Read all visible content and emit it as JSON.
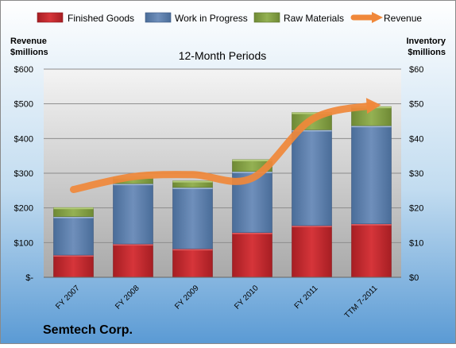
{
  "chart_data": {
    "type": "bar",
    "subtitle": "12-Month Periods",
    "company": "Semtech Corp.",
    "left_axis_label_line1": "Revenue",
    "left_axis_label_line2": "$millions",
    "right_axis_label_line1": "Inventory",
    "right_axis_label_line2": "$millions",
    "categories": [
      "FY 2007",
      "FY 2008",
      "FY 2009",
      "FY 2010",
      "FY 2011",
      "TTM 7-2011"
    ],
    "left_ticks": [
      "$-",
      "$100",
      "$200",
      "$300",
      "$400",
      "$500",
      "$600"
    ],
    "right_ticks": [
      "$0",
      "$10",
      "$20",
      "$30",
      "$40",
      "$50",
      "$60"
    ],
    "ylim_left": [
      0,
      600
    ],
    "ylim_right": [
      0,
      60
    ],
    "stacked": true,
    "series": [
      {
        "name": "Finished Goods",
        "axis": "right",
        "color": "#c0272d",
        "values": [
          6.4,
          9.6,
          8.2,
          12.9,
          14.9,
          15.4
        ]
      },
      {
        "name": "Work in Progress",
        "axis": "right",
        "color": "#4f81bd",
        "values": [
          11.1,
          17.4,
          17.7,
          17.6,
          27.6,
          28.3
        ]
      },
      {
        "name": "Raw Materials",
        "axis": "right",
        "color": "#9bbb59",
        "values": [
          2.6,
          1.9,
          1.9,
          3.4,
          5.0,
          5.5
        ]
      },
      {
        "name": "Revenue",
        "axis": "left",
        "type": "line",
        "color": "#f79646",
        "values": [
          253,
          290,
          296,
          286,
          455,
          495
        ]
      }
    ],
    "grid": true,
    "legend_position": "top"
  }
}
